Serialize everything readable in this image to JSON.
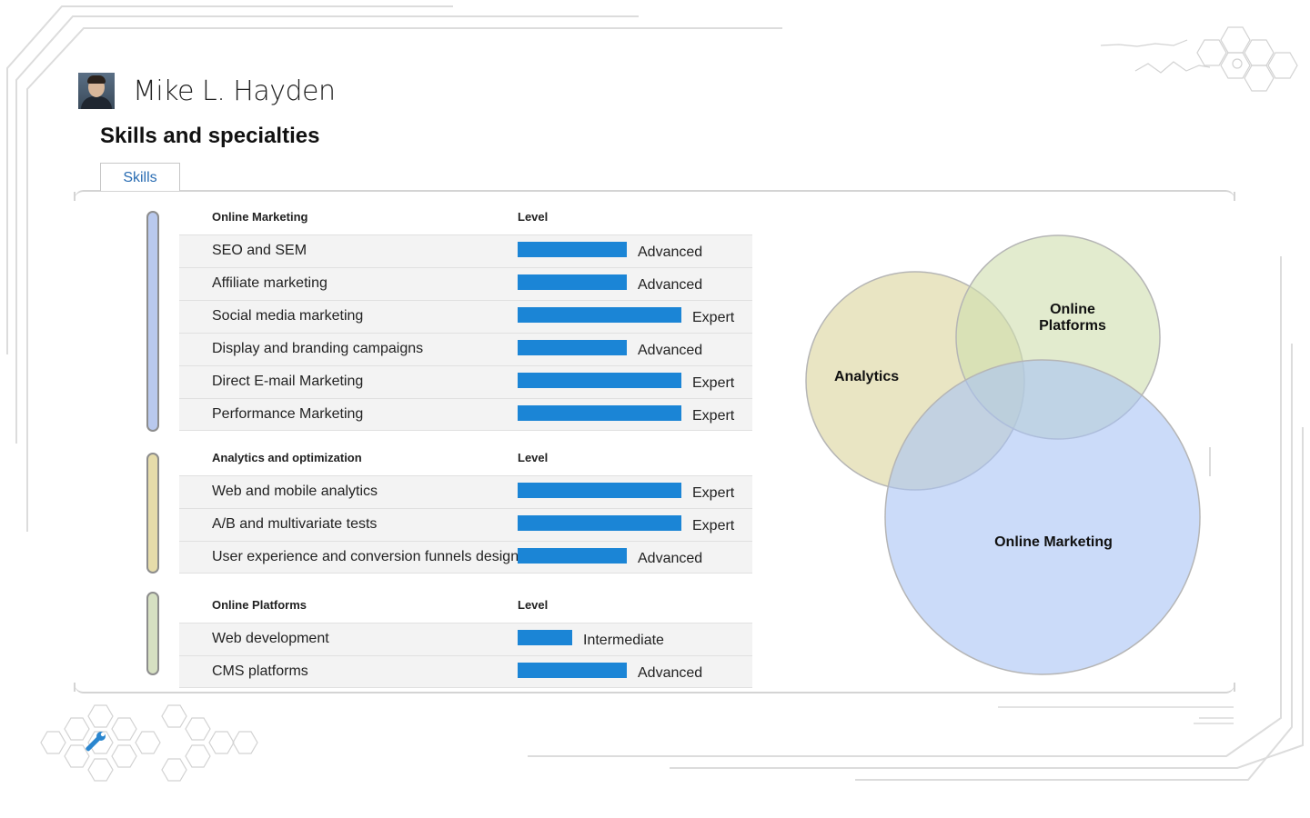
{
  "profile": {
    "name": "Mike L. Hayden"
  },
  "section_title": "Skills and specialties",
  "tab_label": "Skills",
  "level_header": "Level",
  "groups": [
    {
      "title": "Online Marketing",
      "color": "#b9c9ee",
      "skills": [
        {
          "name": "SEO and SEM",
          "level": "Advanced",
          "rating": 0.667
        },
        {
          "name": "Affiliate marketing",
          "level": "Advanced",
          "rating": 0.667
        },
        {
          "name": "Social media marketing",
          "level": "Expert",
          "rating": 1.0
        },
        {
          "name": "Display and branding campaigns",
          "level": "Advanced",
          "rating": 0.667
        },
        {
          "name": "Direct E-mail Marketing",
          "level": "Expert",
          "rating": 1.0
        },
        {
          "name": "Performance Marketing",
          "level": "Expert",
          "rating": 1.0
        }
      ]
    },
    {
      "title": "Analytics and optimization",
      "color": "#e6dcaa",
      "skills": [
        {
          "name": "Web and mobile analytics",
          "level": "Expert",
          "rating": 1.0
        },
        {
          "name": "A/B and multivariate tests",
          "level": "Expert",
          "rating": 1.0
        },
        {
          "name": "User experience and conversion funnels design",
          "level": "Advanced",
          "rating": 0.667
        }
      ]
    },
    {
      "title": "Online Platforms",
      "color": "#d6e0c2",
      "skills": [
        {
          "name": "Web development",
          "level": "Intermediate",
          "rating": 0.333
        },
        {
          "name": "CMS platforms",
          "level": "Advanced",
          "rating": 0.667
        }
      ]
    }
  ],
  "venn": {
    "circles": [
      {
        "label": "Analytics",
        "color": "#dbd49b"
      },
      {
        "label": "Online Platforms",
        "color": "#cfdeae"
      },
      {
        "label": "Online Marketing",
        "color": "#a8c3f5"
      }
    ]
  },
  "icons": {
    "hex_tool": "wrench-icon"
  }
}
